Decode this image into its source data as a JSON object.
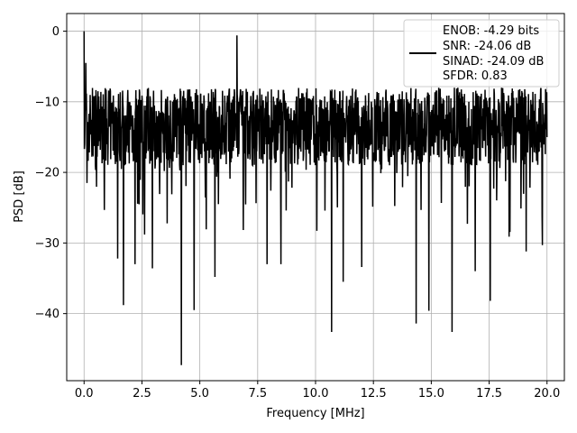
{
  "chart_data": {
    "type": "line",
    "title": "",
    "xlabel": "Frequency [MHz]",
    "ylabel": "PSD [dB]",
    "xlim": [
      -0.75,
      20.75
    ],
    "ylim": [
      -49.5,
      2.5
    ],
    "xticks": [
      0.0,
      2.5,
      5.0,
      7.5,
      10.0,
      12.5,
      15.0,
      17.5,
      20.0
    ],
    "xtick_labels": [
      "0.0",
      "2.5",
      "5.0",
      "7.5",
      "10.0",
      "12.5",
      "15.0",
      "17.5",
      "20.0"
    ],
    "yticks": [
      0,
      -10,
      -20,
      -30,
      -40
    ],
    "ytick_labels": [
      "0",
      "−10",
      "−20",
      "−30",
      "−40"
    ],
    "grid": true,
    "legend_position": "upper-right",
    "legend_text": [
      "ENOB: -4.29 bits",
      "SNR: -24.06 dB",
      "SINAD: -24.09 dB",
      "SFDR: 0.83"
    ],
    "series": [
      {
        "color": "#000000",
        "generator": {
          "n_points": 1600,
          "x_start": 0.0,
          "x_end": 20.0,
          "base_level": -13.5,
          "noise_amplitude": 5.5,
          "ceiling": -2.5,
          "seed": 7
        },
        "peaks": [
          {
            "x": 0.0,
            "y": 0.0
          },
          {
            "x": 0.02,
            "y": -16.0
          },
          {
            "x": 0.08,
            "y": -4.5
          },
          {
            "x": 0.12,
            "y": -21.5
          },
          {
            "x": 1.7,
            "y": -38.8
          },
          {
            "x": 1.45,
            "y": -32.2
          },
          {
            "x": 2.2,
            "y": -33.0
          },
          {
            "x": 2.95,
            "y": -33.6
          },
          {
            "x": 4.2,
            "y": -47.3
          },
          {
            "x": 4.75,
            "y": -39.5
          },
          {
            "x": 5.65,
            "y": -34.8
          },
          {
            "x": 6.6,
            "y": -0.6
          },
          {
            "x": 7.9,
            "y": -33.0
          },
          {
            "x": 8.5,
            "y": -33.0
          },
          {
            "x": 10.7,
            "y": -42.6
          },
          {
            "x": 11.2,
            "y": -35.5
          },
          {
            "x": 12.0,
            "y": -33.4
          },
          {
            "x": 14.35,
            "y": -41.4
          },
          {
            "x": 14.9,
            "y": -39.6
          },
          {
            "x": 15.9,
            "y": -42.6
          },
          {
            "x": 16.9,
            "y": -34.0
          },
          {
            "x": 17.55,
            "y": -38.2
          },
          {
            "x": 19.1,
            "y": -31.2
          },
          {
            "x": 19.8,
            "y": -30.3
          },
          {
            "x": 20.0,
            "y": -15.0
          }
        ]
      }
    ]
  }
}
